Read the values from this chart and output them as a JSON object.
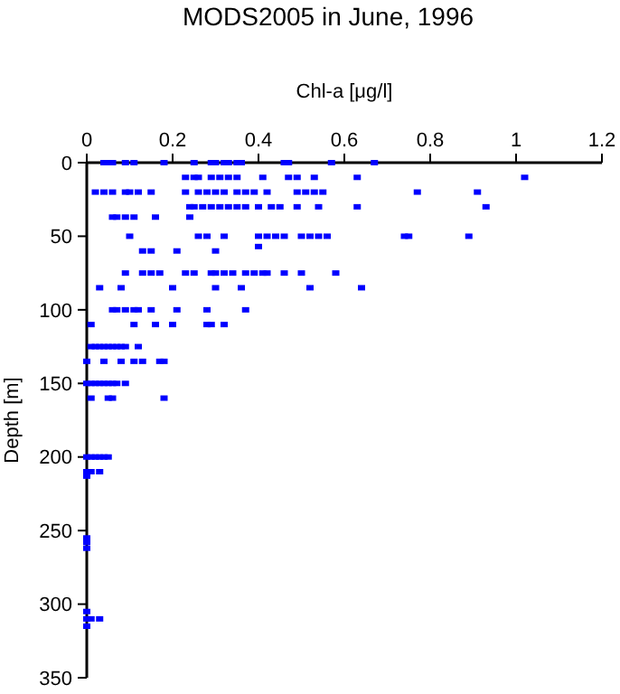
{
  "chart_data": {
    "type": "scatter",
    "title": "MODS2005 in June, 1996",
    "xlabel": "Chl-a [μg/l]",
    "ylabel": "Depth [m]",
    "xlim": [
      0,
      1.2
    ],
    "xticks": [
      0,
      0.2,
      0.4,
      0.6,
      0.8,
      1,
      1.2
    ],
    "ylim": [
      350,
      0
    ],
    "yticks": [
      0,
      50,
      100,
      150,
      200,
      250,
      300,
      350
    ],
    "marker": "square",
    "grid": false,
    "series": [
      {
        "color": "#0000ff",
        "x": [
          0.04,
          0.05,
          0.06,
          0.09,
          0.11,
          0.18,
          0.25,
          0.29,
          0.3,
          0.32,
          0.33,
          0.35,
          0.36,
          0.46,
          0.47,
          0.57,
          0.67,
          0.23,
          0.25,
          0.26,
          0.29,
          0.31,
          0.33,
          0.35,
          0.41,
          0.47,
          0.49,
          0.53,
          0.63,
          1.02,
          0.02,
          0.04,
          0.06,
          0.09,
          0.1,
          0.12,
          0.15,
          0.23,
          0.26,
          0.28,
          0.3,
          0.32,
          0.35,
          0.37,
          0.39,
          0.42,
          0.49,
          0.51,
          0.53,
          0.55,
          0.77,
          0.91,
          0.24,
          0.25,
          0.27,
          0.29,
          0.31,
          0.33,
          0.35,
          0.37,
          0.4,
          0.43,
          0.45,
          0.49,
          0.54,
          0.63,
          0.93,
          0.06,
          0.07,
          0.09,
          0.11,
          0.16,
          0.24,
          0.1,
          0.26,
          0.28,
          0.32,
          0.4,
          0.42,
          0.44,
          0.46,
          0.5,
          0.52,
          0.54,
          0.56,
          0.74,
          0.75,
          0.89,
          0.13,
          0.15,
          0.21,
          0.3,
          0.4,
          0.09,
          0.13,
          0.15,
          0.17,
          0.23,
          0.25,
          0.29,
          0.3,
          0.32,
          0.34,
          0.37,
          0.39,
          0.41,
          0.42,
          0.46,
          0.5,
          0.58,
          0.03,
          0.08,
          0.2,
          0.3,
          0.36,
          0.52,
          0.64,
          0.06,
          0.07,
          0.09,
          0.11,
          0.12,
          0.15,
          0.21,
          0.28,
          0.37,
          0.01,
          0.11,
          0.16,
          0.2,
          0.28,
          0.29,
          0.32,
          0.01,
          0.02,
          0.03,
          0.04,
          0.05,
          0.06,
          0.07,
          0.08,
          0.09,
          0.12,
          0,
          0.04,
          0.08,
          0.11,
          0.13,
          0.17,
          0.18,
          0,
          0.01,
          0.02,
          0.03,
          0.04,
          0.05,
          0.06,
          0.07,
          0.09,
          0.01,
          0.05,
          0.06,
          0.18,
          0,
          0.01,
          0.02,
          0.03,
          0.04,
          0.05,
          0,
          0.01,
          0.03,
          0,
          0,
          0,
          0,
          0,
          0,
          0.01,
          0.03,
          0
        ],
        "values": [
          0,
          0,
          0,
          0,
          0,
          0,
          0,
          0,
          0,
          0,
          0,
          0,
          0,
          0,
          0,
          0,
          0,
          10,
          10,
          10,
          10,
          10,
          10,
          10,
          10,
          10,
          10,
          10,
          10,
          10,
          20,
          20,
          20,
          20,
          20,
          20,
          20,
          20,
          20,
          20,
          20,
          20,
          20,
          20,
          20,
          20,
          20,
          20,
          20,
          20,
          20,
          20,
          30,
          30,
          30,
          30,
          30,
          30,
          30,
          30,
          30,
          30,
          30,
          30,
          30,
          30,
          30,
          37,
          37,
          37,
          37,
          37,
          37,
          50,
          50,
          50,
          50,
          50,
          50,
          50,
          50,
          50,
          50,
          50,
          50,
          50,
          50,
          50,
          60,
          60,
          60,
          60,
          57,
          75,
          75,
          75,
          75,
          75,
          75,
          75,
          75,
          75,
          75,
          75,
          75,
          75,
          75,
          75,
          75,
          75,
          85,
          85,
          85,
          85,
          85,
          85,
          85,
          100,
          100,
          100,
          100,
          100,
          100,
          100,
          100,
          100,
          110,
          110,
          110,
          110,
          110,
          110,
          110,
          125,
          125,
          125,
          125,
          125,
          125,
          125,
          125,
          125,
          125,
          135,
          135,
          135,
          135,
          135,
          135,
          135,
          150,
          150,
          150,
          150,
          150,
          150,
          150,
          150,
          150,
          160,
          160,
          160,
          160,
          200,
          200,
          200,
          200,
          200,
          200,
          210,
          210,
          210,
          213,
          255,
          258,
          262,
          305,
          310,
          310,
          310,
          315
        ]
      }
    ]
  }
}
